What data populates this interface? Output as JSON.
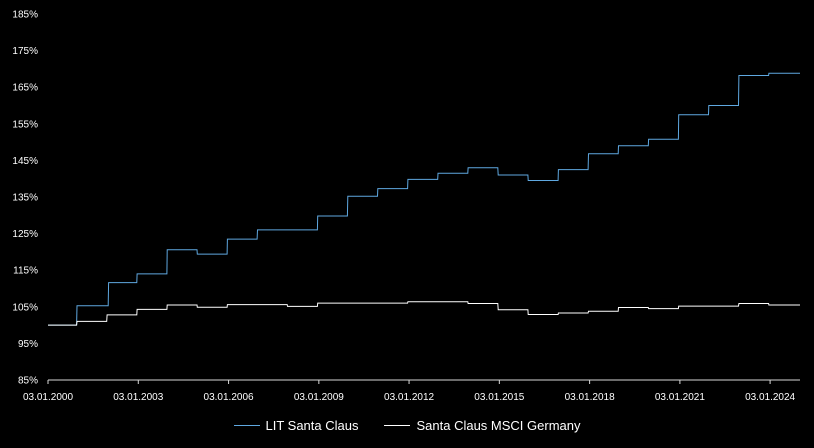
{
  "chart_data": {
    "type": "line",
    "title": "",
    "xlabel": "",
    "ylabel": "",
    "ylim": [
      85,
      185
    ],
    "y_ticks": [
      "85%",
      "95%",
      "105%",
      "115%",
      "125%",
      "135%",
      "145%",
      "155%",
      "165%",
      "175%",
      "185%"
    ],
    "x_ticks": [
      "03.01.2000",
      "03.01.2003",
      "03.01.2006",
      "03.01.2009",
      "03.01.2012",
      "03.01.2015",
      "03.01.2018",
      "03.01.2021",
      "03.01.2024"
    ],
    "xlim": [
      "2000-01-03",
      "2024-12-31"
    ],
    "grid": false,
    "legend_position": "bottom",
    "series": [
      {
        "name": "LIT Santa Claus",
        "color": "#5fa8e0",
        "points": [
          [
            "2000-01-03",
            100.0
          ],
          [
            "2000-12-15",
            100.0
          ],
          [
            "2000-12-20",
            105.3
          ],
          [
            "2002-01-03",
            105.3
          ],
          [
            "2002-01-08",
            111.6
          ],
          [
            "2002-12-16",
            111.6
          ],
          [
            "2002-12-20",
            114.0
          ],
          [
            "2003-12-16",
            114.0
          ],
          [
            "2003-12-20",
            120.6
          ],
          [
            "2004-12-16",
            120.6
          ],
          [
            "2004-12-20",
            119.4
          ],
          [
            "2005-12-16",
            119.4
          ],
          [
            "2005-12-20",
            123.5
          ],
          [
            "2006-12-16",
            123.5
          ],
          [
            "2006-12-20",
            126.0
          ],
          [
            "2008-12-16",
            126.0
          ],
          [
            "2008-12-20",
            129.8
          ],
          [
            "2009-12-16",
            129.8
          ],
          [
            "2009-12-20",
            135.2
          ],
          [
            "2010-12-16",
            135.2
          ],
          [
            "2010-12-20",
            137.3
          ],
          [
            "2011-12-16",
            137.3
          ],
          [
            "2011-12-20",
            139.8
          ],
          [
            "2012-12-16",
            139.8
          ],
          [
            "2012-12-20",
            141.5
          ],
          [
            "2013-12-16",
            141.5
          ],
          [
            "2013-12-20",
            143.0
          ],
          [
            "2014-12-16",
            143.0
          ],
          [
            "2014-12-20",
            141.0
          ],
          [
            "2015-12-16",
            141.0
          ],
          [
            "2015-12-20",
            139.5
          ],
          [
            "2016-12-16",
            139.5
          ],
          [
            "2016-12-20",
            142.5
          ],
          [
            "2017-12-16",
            142.5
          ],
          [
            "2017-12-20",
            146.8
          ],
          [
            "2018-12-16",
            146.8
          ],
          [
            "2018-12-20",
            149.0
          ],
          [
            "2019-12-16",
            149.0
          ],
          [
            "2019-12-20",
            150.8
          ],
          [
            "2020-12-16",
            150.8
          ],
          [
            "2020-12-20",
            157.5
          ],
          [
            "2021-12-16",
            157.5
          ],
          [
            "2021-12-20",
            160.0
          ],
          [
            "2022-12-16",
            160.0
          ],
          [
            "2022-12-20",
            168.2
          ],
          [
            "2023-12-16",
            168.2
          ],
          [
            "2023-12-20",
            168.8
          ],
          [
            "2024-12-31",
            168.8
          ]
        ]
      },
      {
        "name": "Santa Claus MSCI Germany",
        "color": "#ffffff",
        "points": [
          [
            "2000-01-03",
            100.0
          ],
          [
            "2000-12-15",
            100.0
          ],
          [
            "2000-12-20",
            101.0
          ],
          [
            "2001-12-16",
            101.0
          ],
          [
            "2001-12-20",
            102.8
          ],
          [
            "2002-12-16",
            102.8
          ],
          [
            "2002-12-20",
            104.3
          ],
          [
            "2003-12-16",
            104.3
          ],
          [
            "2003-12-20",
            105.5
          ],
          [
            "2004-12-16",
            105.5
          ],
          [
            "2004-12-20",
            104.9
          ],
          [
            "2005-12-16",
            104.9
          ],
          [
            "2005-12-20",
            105.6
          ],
          [
            "2007-12-16",
            105.6
          ],
          [
            "2007-12-20",
            105.1
          ],
          [
            "2008-12-16",
            105.1
          ],
          [
            "2008-12-20",
            106.0
          ],
          [
            "2011-12-16",
            106.0
          ],
          [
            "2011-12-20",
            106.4
          ],
          [
            "2013-12-16",
            106.4
          ],
          [
            "2013-12-20",
            105.9
          ],
          [
            "2014-12-16",
            105.9
          ],
          [
            "2014-12-20",
            104.2
          ],
          [
            "2015-12-16",
            104.2
          ],
          [
            "2015-12-20",
            102.9
          ],
          [
            "2016-12-16",
            102.9
          ],
          [
            "2016-12-20",
            103.3
          ],
          [
            "2017-12-16",
            103.3
          ],
          [
            "2017-12-20",
            103.8
          ],
          [
            "2018-12-16",
            103.8
          ],
          [
            "2018-12-20",
            104.8
          ],
          [
            "2019-12-16",
            104.8
          ],
          [
            "2019-12-20",
            104.5
          ],
          [
            "2020-12-16",
            104.5
          ],
          [
            "2020-12-20",
            105.2
          ],
          [
            "2022-12-16",
            105.2
          ],
          [
            "2022-12-20",
            105.9
          ],
          [
            "2023-12-16",
            105.9
          ],
          [
            "2023-12-20",
            105.5
          ],
          [
            "2024-12-31",
            105.5
          ]
        ]
      }
    ]
  }
}
